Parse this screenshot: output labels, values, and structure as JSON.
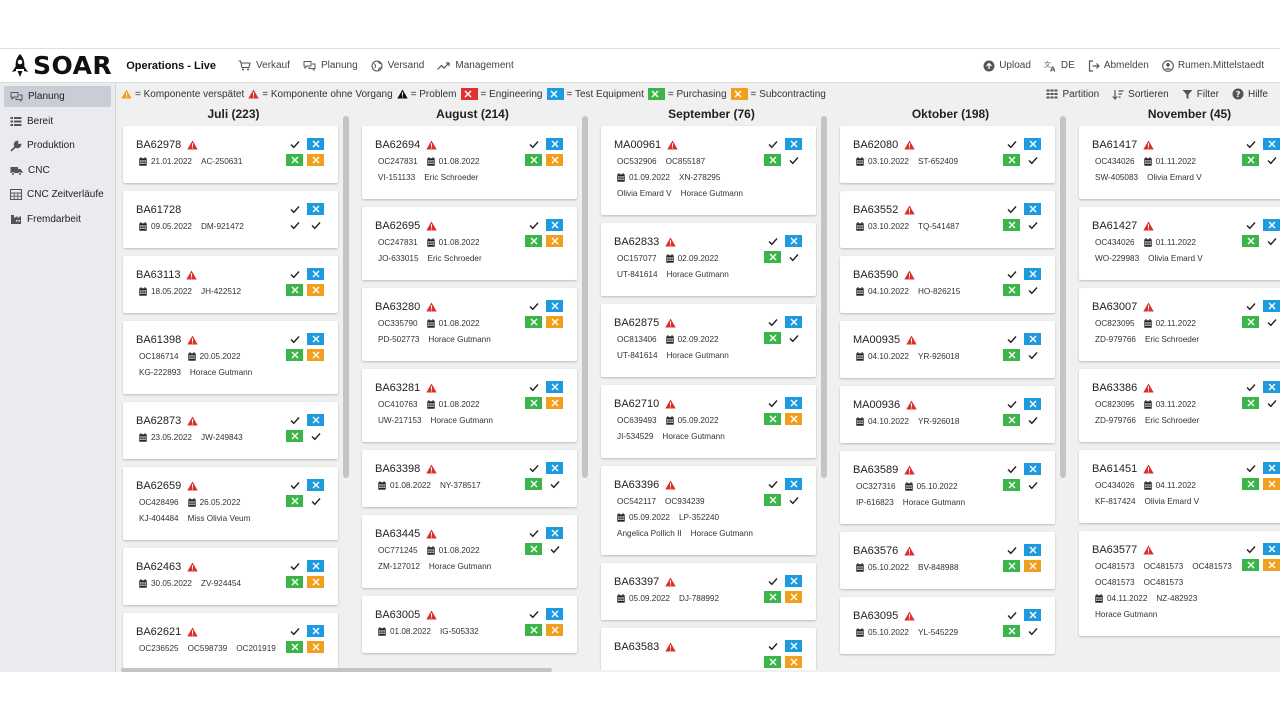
{
  "app": {
    "brand": "SOAR",
    "title": "Operations - Live"
  },
  "nav": [
    {
      "label": "Verkauf",
      "icon": "cart-icon"
    },
    {
      "label": "Planung",
      "icon": "chat-icon"
    },
    {
      "label": "Versand",
      "icon": "globe-icon"
    },
    {
      "label": "Management",
      "icon": "trend-icon"
    }
  ],
  "header_right": {
    "upload": "Upload",
    "language": "DE",
    "logout": "Abmelden",
    "user": "Rumen.Mittelstaedt"
  },
  "sidebar": [
    {
      "label": "Planung",
      "icon": "chat-icon",
      "active": true
    },
    {
      "label": "Bereit",
      "icon": "list-icon",
      "active": false
    },
    {
      "label": "Produktion",
      "icon": "wrench-icon",
      "active": false
    },
    {
      "label": "CNC",
      "icon": "truck-icon",
      "active": false
    },
    {
      "label": "CNC Zeitverläufe",
      "icon": "table-icon",
      "active": false
    },
    {
      "label": "Fremdarbeit",
      "icon": "factory-icon",
      "active": false
    }
  ],
  "legend": [
    {
      "icon": "warning-orange",
      "label": "= Komponente verspätet"
    },
    {
      "icon": "warning-red",
      "label": "= Komponente ohne Vorgang"
    },
    {
      "icon": "warning-black",
      "label": "= Problem"
    },
    {
      "icon": "box-red",
      "label": "= Engineering"
    },
    {
      "icon": "box-blue",
      "label": "= Test Equipment"
    },
    {
      "icon": "box-green",
      "label": "= Purchasing"
    },
    {
      "icon": "box-orange",
      "label": "= Subcontracting"
    }
  ],
  "tools": [
    {
      "label": "Partition",
      "icon": "columns-icon"
    },
    {
      "label": "Sortieren",
      "icon": "sort-icon"
    },
    {
      "label": "Filter",
      "icon": "filter-icon"
    },
    {
      "label": "Hilfe",
      "icon": "help-icon"
    }
  ],
  "colors": {
    "blue": "#1e9bde",
    "green": "#3bb54a",
    "orange": "#f0a01e",
    "red": "#e03131",
    "warning": "#d9302c"
  },
  "columns": [
    {
      "title": "Juli (223)",
      "cards": [
        {
          "id": "BA62978",
          "lines": [
            [
              {
                "d": true,
                "t": "21.01.2022"
              },
              {
                "t": "AC-250631"
              }
            ]
          ],
          "status": [
            "check",
            "blue",
            "green",
            "orange"
          ]
        },
        {
          "id": "BA61728",
          "lines": [
            [
              {
                "d": true,
                "t": "09.05.2022"
              },
              {
                "t": "DM-921472"
              }
            ]
          ],
          "status": [
            "check",
            "blue",
            "check",
            "check"
          ],
          "nowarn": true
        },
        {
          "id": "BA63113",
          "lines": [
            [
              {
                "d": true,
                "t": "18.05.2022"
              },
              {
                "t": "JH-422512"
              }
            ]
          ],
          "status": [
            "check",
            "blue",
            "green",
            "orange"
          ]
        },
        {
          "id": "BA61398",
          "lines": [
            [
              {
                "t": "OC186714"
              },
              {
                "d": true,
                "t": "20.05.2022"
              }
            ],
            [
              {
                "t": "KG-222893"
              },
              {
                "t": "Horace Gutmann"
              }
            ]
          ],
          "status": [
            "check",
            "blue",
            "green",
            "orange"
          ]
        },
        {
          "id": "BA62873",
          "lines": [
            [
              {
                "d": true,
                "t": "23.05.2022"
              },
              {
                "t": "JW-249843"
              }
            ]
          ],
          "status": [
            "check",
            "blue",
            "green",
            "check"
          ]
        },
        {
          "id": "BA62659",
          "lines": [
            [
              {
                "t": "OC428496"
              },
              {
                "d": true,
                "t": "26.05.2022"
              }
            ],
            [
              {
                "t": "KJ-404484"
              },
              {
                "t": "Miss Olivia Veum"
              }
            ]
          ],
          "status": [
            "check",
            "blue",
            "green",
            "check"
          ]
        },
        {
          "id": "BA62463",
          "lines": [
            [
              {
                "d": true,
                "t": "30.05.2022"
              },
              {
                "t": "ZV-924454"
              }
            ]
          ],
          "status": [
            "check",
            "blue",
            "green",
            "orange"
          ]
        },
        {
          "id": "BA62621",
          "lines": [
            [
              {
                "t": "OC236525"
              },
              {
                "t": "OC598739"
              },
              {
                "t": "OC201919"
              }
            ]
          ],
          "status": [
            "check",
            "blue",
            "green",
            "orange"
          ]
        }
      ]
    },
    {
      "title": "August (214)",
      "cards": [
        {
          "id": "BA62694",
          "lines": [
            [
              {
                "t": "OC247831"
              },
              {
                "d": true,
                "t": "01.08.2022"
              }
            ],
            [
              {
                "t": "VI-151133"
              },
              {
                "t": "Eric Schroeder"
              }
            ]
          ],
          "status": [
            "check",
            "blue",
            "green",
            "orange"
          ]
        },
        {
          "id": "BA62695",
          "lines": [
            [
              {
                "t": "OC247831"
              },
              {
                "d": true,
                "t": "01.08.2022"
              }
            ],
            [
              {
                "t": "JO-633015"
              },
              {
                "t": "Eric Schroeder"
              }
            ]
          ],
          "status": [
            "check",
            "blue",
            "green",
            "orange"
          ]
        },
        {
          "id": "BA63280",
          "lines": [
            [
              {
                "t": "OC335790"
              },
              {
                "d": true,
                "t": "01.08.2022"
              }
            ],
            [
              {
                "t": "PD-502773"
              },
              {
                "t": "Horace Gutmann"
              }
            ]
          ],
          "status": [
            "check",
            "blue",
            "green",
            "orange"
          ]
        },
        {
          "id": "BA63281",
          "lines": [
            [
              {
                "t": "OC410763"
              },
              {
                "d": true,
                "t": "01.08.2022"
              }
            ],
            [
              {
                "t": "UW-217153"
              },
              {
                "t": "Horace Gutmann"
              }
            ]
          ],
          "status": [
            "check",
            "blue",
            "green",
            "orange"
          ]
        },
        {
          "id": "BA63398",
          "lines": [
            [
              {
                "d": true,
                "t": "01.08.2022"
              },
              {
                "t": "NY-378517"
              }
            ]
          ],
          "status": [
            "check",
            "blue",
            "green",
            "check"
          ]
        },
        {
          "id": "BA63445",
          "lines": [
            [
              {
                "t": "OC771245"
              },
              {
                "d": true,
                "t": "01.08.2022"
              }
            ],
            [
              {
                "t": "ZM-127012"
              },
              {
                "t": "Horace Gutmann"
              }
            ]
          ],
          "status": [
            "check",
            "blue",
            "green",
            "check"
          ]
        },
        {
          "id": "BA63005",
          "lines": [
            [
              {
                "d": true,
                "t": "01.08.2022"
              },
              {
                "t": "IG-505332"
              }
            ]
          ],
          "status": [
            "check",
            "blue",
            "green",
            "orange"
          ]
        }
      ]
    },
    {
      "title": "September (76)",
      "cards": [
        {
          "id": "MA00961",
          "lines": [
            [
              {
                "t": "OC532906"
              },
              {
                "t": "OC855187"
              }
            ],
            [
              {
                "d": true,
                "t": "01.09.2022"
              },
              {
                "t": "XN-278295"
              }
            ],
            [
              {
                "t": "Olivia Emard V"
              },
              {
                "t": "Horace Gutmann"
              }
            ]
          ],
          "status": [
            "check",
            "blue",
            "green",
            "check"
          ]
        },
        {
          "id": "BA62833",
          "lines": [
            [
              {
                "t": "OC157077"
              },
              {
                "d": true,
                "t": "02.09.2022"
              }
            ],
            [
              {
                "t": "UT-841614"
              },
              {
                "t": "Horace Gutmann"
              }
            ]
          ],
          "status": [
            "check",
            "blue",
            "green",
            "check"
          ]
        },
        {
          "id": "BA62875",
          "lines": [
            [
              {
                "t": "OC813406"
              },
              {
                "d": true,
                "t": "02.09.2022"
              }
            ],
            [
              {
                "t": "UT-841614"
              },
              {
                "t": "Horace Gutmann"
              }
            ]
          ],
          "status": [
            "check",
            "blue",
            "green",
            "check"
          ]
        },
        {
          "id": "BA62710",
          "lines": [
            [
              {
                "t": "OC639493"
              },
              {
                "d": true,
                "t": "05.09.2022"
              }
            ],
            [
              {
                "t": "JI-534529"
              },
              {
                "t": "Horace Gutmann"
              }
            ]
          ],
          "status": [
            "check",
            "blue",
            "green",
            "orange"
          ]
        },
        {
          "id": "BA63396",
          "lines": [
            [
              {
                "t": "OC542117"
              },
              {
                "t": "OC934239"
              }
            ],
            [
              {
                "d": true,
                "t": "05.09.2022"
              },
              {
                "t": "LP-352240"
              }
            ],
            [
              {
                "t": "Angelica Pollich II"
              },
              {
                "t": "Horace Gutmann"
              }
            ]
          ],
          "status": [
            "check",
            "blue",
            "green",
            "check"
          ]
        },
        {
          "id": "BA63397",
          "lines": [
            [
              {
                "d": true,
                "t": "05.09.2022"
              },
              {
                "t": "DJ-788992"
              }
            ]
          ],
          "status": [
            "check",
            "blue",
            "green",
            "orange"
          ]
        },
        {
          "id": "BA63583",
          "lines": [],
          "status": [
            "check",
            "blue",
            "green",
            "orange"
          ]
        }
      ]
    },
    {
      "title": "Oktober (198)",
      "cards": [
        {
          "id": "BA62080",
          "lines": [
            [
              {
                "d": true,
                "t": "03.10.2022"
              },
              {
                "t": "ST-652409"
              }
            ]
          ],
          "status": [
            "check",
            "blue",
            "green",
            "check"
          ]
        },
        {
          "id": "BA63552",
          "lines": [
            [
              {
                "d": true,
                "t": "03.10.2022"
              },
              {
                "t": "TQ-541487"
              }
            ]
          ],
          "status": [
            "check",
            "blue",
            "green",
            "check"
          ]
        },
        {
          "id": "BA63590",
          "lines": [
            [
              {
                "d": true,
                "t": "04.10.2022"
              },
              {
                "t": "HO-826215"
              }
            ]
          ],
          "status": [
            "check",
            "blue",
            "green",
            "check"
          ]
        },
        {
          "id": "MA00935",
          "lines": [
            [
              {
                "d": true,
                "t": "04.10.2022"
              },
              {
                "t": "YR-926018"
              }
            ]
          ],
          "status": [
            "check",
            "blue",
            "green",
            "check"
          ]
        },
        {
          "id": "MA00936",
          "lines": [
            [
              {
                "d": true,
                "t": "04.10.2022"
              },
              {
                "t": "YR-926018"
              }
            ]
          ],
          "status": [
            "check",
            "blue",
            "green",
            "check"
          ]
        },
        {
          "id": "BA63589",
          "lines": [
            [
              {
                "t": "OC327316"
              },
              {
                "d": true,
                "t": "05.10.2022"
              }
            ],
            [
              {
                "t": "IP-616823"
              },
              {
                "t": "Horace Gutmann"
              }
            ]
          ],
          "status": [
            "check",
            "blue",
            "green",
            "check"
          ]
        },
        {
          "id": "BA63576",
          "lines": [
            [
              {
                "d": true,
                "t": "05.10.2022"
              },
              {
                "t": "BV-848988"
              }
            ]
          ],
          "status": [
            "check",
            "blue",
            "green",
            "orange"
          ]
        },
        {
          "id": "BA63095",
          "lines": [
            [
              {
                "d": true,
                "t": "05.10.2022"
              },
              {
                "t": "YL-545229"
              }
            ]
          ],
          "status": [
            "check",
            "blue",
            "green",
            "check"
          ]
        }
      ]
    },
    {
      "title": "November (45)",
      "cards": [
        {
          "id": "BA61417",
          "lines": [
            [
              {
                "t": "OC434026"
              },
              {
                "d": true,
                "t": "01.11.2022"
              }
            ],
            [
              {
                "t": "SW-405083"
              },
              {
                "t": "Olivia Emard V"
              }
            ]
          ],
          "status": [
            "check",
            "blue",
            "green",
            "check"
          ]
        },
        {
          "id": "BA61427",
          "lines": [
            [
              {
                "t": "OC434026"
              },
              {
                "d": true,
                "t": "01.11.2022"
              }
            ],
            [
              {
                "t": "WO-229983"
              },
              {
                "t": "Olivia Emard V"
              }
            ]
          ],
          "status": [
            "check",
            "blue",
            "green",
            "check"
          ]
        },
        {
          "id": "BA63007",
          "lines": [
            [
              {
                "t": "OC823095"
              },
              {
                "d": true,
                "t": "02.11.2022"
              }
            ],
            [
              {
                "t": "ZD-979766"
              },
              {
                "t": "Eric Schroeder"
              }
            ]
          ],
          "status": [
            "check",
            "blue",
            "green",
            "check"
          ]
        },
        {
          "id": "BA63386",
          "lines": [
            [
              {
                "t": "OC823095"
              },
              {
                "d": true,
                "t": "03.11.2022"
              }
            ],
            [
              {
                "t": "ZD-979766"
              },
              {
                "t": "Eric Schroeder"
              }
            ]
          ],
          "status": [
            "check",
            "blue",
            "green",
            "check"
          ]
        },
        {
          "id": "BA61451",
          "lines": [
            [
              {
                "t": "OC434026"
              },
              {
                "d": true,
                "t": "04.11.2022"
              }
            ],
            [
              {
                "t": "KF-817424"
              },
              {
                "t": "Olivia Emard V"
              }
            ]
          ],
          "status": [
            "check",
            "blue",
            "green",
            "orange"
          ]
        },
        {
          "id": "BA63577",
          "lines": [
            [
              {
                "t": "OC481573"
              },
              {
                "t": "OC481573"
              },
              {
                "t": "OC481573"
              }
            ],
            [
              {
                "t": "OC481573"
              },
              {
                "t": "OC481573"
              }
            ],
            [
              {
                "d": true,
                "t": "04.11.2022"
              },
              {
                "t": "NZ-482923"
              }
            ],
            [
              {
                "t": "Horace Gutmann"
              }
            ]
          ],
          "status": [
            "check",
            "blue",
            "green",
            "orange"
          ]
        }
      ]
    }
  ]
}
